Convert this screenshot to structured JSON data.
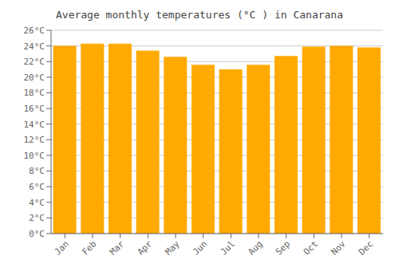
{
  "chart_data": {
    "type": "bar",
    "title": "Average monthly temperatures (°C ) in Canarana",
    "categories": [
      "Jan",
      "Feb",
      "Mar",
      "Apr",
      "May",
      "Jun",
      "Jul",
      "Aug",
      "Sep",
      "Oct",
      "Nov",
      "Dec"
    ],
    "values": [
      24.0,
      24.3,
      24.3,
      23.4,
      22.6,
      21.6,
      21.0,
      21.6,
      22.7,
      23.9,
      24.0,
      23.8
    ],
    "color": "#FFAA00",
    "ylim": [
      0,
      26
    ],
    "yticks": [
      {
        "value": 0,
        "label": "0°C"
      },
      {
        "value": 2,
        "label": "2°C"
      },
      {
        "value": 4,
        "label": "4°C"
      },
      {
        "value": 6,
        "label": "6°C"
      },
      {
        "value": 8,
        "label": "8°C"
      },
      {
        "value": 10,
        "label": "10°C"
      },
      {
        "value": 12,
        "label": "12°C"
      },
      {
        "value": 14,
        "label": "14°C"
      },
      {
        "value": 16,
        "label": "16°C"
      },
      {
        "value": 18,
        "label": "18°C"
      },
      {
        "value": 20,
        "label": "20°C"
      },
      {
        "value": 22,
        "label": "22°C"
      },
      {
        "value": 24,
        "label": "24°C"
      },
      {
        "value": 26,
        "label": "26°C"
      }
    ],
    "grid": true
  }
}
